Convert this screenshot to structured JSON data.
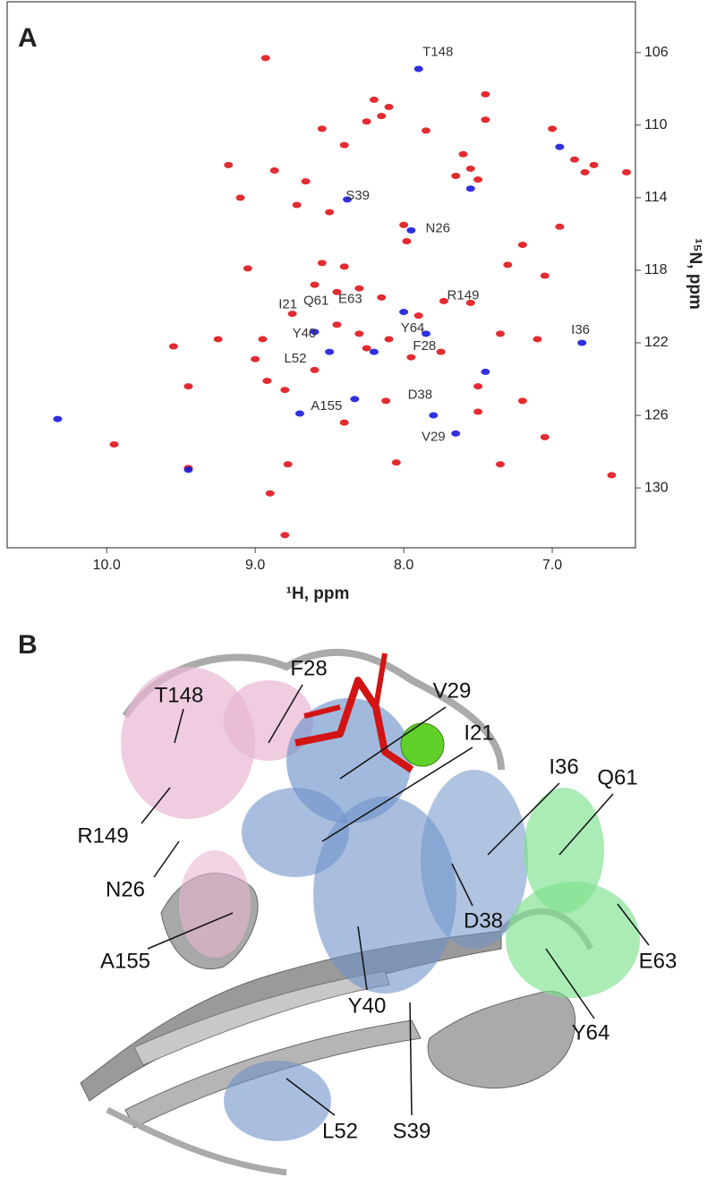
{
  "chart_data": {
    "type": "scatter",
    "panel_label": "A",
    "xlabel": "¹H, ppm",
    "ylabel": "¹⁵N, ppm",
    "xlim": [
      10.67,
      6.44
    ],
    "ylim": [
      103.2,
      133.3
    ],
    "xticks": [
      {
        "value": 10,
        "label": "10.0"
      },
      {
        "value": 9,
        "label": "9.0"
      },
      {
        "value": 8,
        "label": "8.0"
      },
      {
        "value": 7,
        "label": "7.0"
      }
    ],
    "yticks": [
      106,
      110,
      114,
      118,
      122,
      126,
      130
    ],
    "series": [
      {
        "color": "#e0141b",
        "x": [
          8.93,
          8.2,
          8.15,
          8.25,
          8.1,
          7.45,
          7.45,
          7.6,
          7.55,
          7.5,
          7.65,
          6.85,
          6.78,
          6.72,
          6.5,
          7.0,
          7.85,
          8.55,
          8.4,
          8.87,
          9.18,
          8.66,
          8.72,
          9.1,
          8.5,
          8.0,
          7.98,
          7.2,
          6.95,
          7.05,
          8.6,
          8.45,
          8.3,
          8.15,
          8.75,
          8.45,
          8.3,
          8.1,
          7.9,
          7.73,
          7.55,
          7.35,
          7.1,
          8.95,
          9.25,
          9.55,
          9.0,
          8.6,
          8.25,
          7.95,
          7.75,
          8.92,
          9.45,
          8.8,
          7.5,
          8.12,
          8.4,
          7.5,
          7.2,
          9.95,
          8.78,
          8.9,
          8.8,
          6.6,
          9.45,
          8.05,
          7.35,
          7.05,
          8.4,
          7.3,
          9.05,
          8.55
        ],
        "y": [
          106.3,
          108.6,
          109.5,
          109.8,
          109,
          108.3,
          109.7,
          111.6,
          112.4,
          113,
          112.8,
          111.9,
          112.6,
          112.2,
          112.6,
          110.2,
          110.3,
          110.2,
          111.1,
          112.5,
          112.2,
          113.1,
          114.4,
          114,
          114.8,
          115.5,
          116.4,
          116.6,
          115.6,
          118.3,
          118.8,
          119.2,
          119,
          119.5,
          120.4,
          121,
          121.5,
          121.8,
          120.5,
          119.7,
          119.8,
          121.5,
          121.8,
          121.8,
          121.8,
          122.2,
          122.9,
          123.5,
          122.3,
          122.8,
          122.5,
          124.1,
          124.4,
          124.6,
          124.4,
          125.2,
          126.4,
          125.8,
          125.2,
          127.6,
          128.7,
          130.3,
          132.6,
          129.3,
          128.9,
          128.6,
          128.7,
          127.2,
          117.8,
          117.7,
          117.9,
          117.6
        ]
      },
      {
        "color": "#1a1adc",
        "x": [
          7.9,
          8.38,
          7.95,
          6.95,
          7.55,
          8.0,
          7.85,
          8.2,
          8.5,
          7.8,
          7.65,
          6.8,
          9.45,
          8.7,
          8.33,
          10.33,
          8.6,
          7.45
        ],
        "y": [
          106.9,
          114.1,
          115.8,
          111.2,
          113.5,
          120.3,
          121.5,
          122.5,
          122.5,
          126,
          127,
          122,
          129,
          125.9,
          125.1,
          126.2,
          121.4,
          123.6
        ]
      }
    ],
    "annotations": [
      {
        "text": "T148",
        "x": 7.77,
        "y": 106.0
      },
      {
        "text": "S39",
        "x": 8.31,
        "y": 113.9
      },
      {
        "text": "N26",
        "x": 7.77,
        "y": 115.7
      },
      {
        "text": "R149",
        "x": 7.6,
        "y": 119.4
      },
      {
        "text": "I21",
        "x": 8.78,
        "y": 119.9
      },
      {
        "text": "Q61",
        "x": 8.59,
        "y": 119.7
      },
      {
        "text": "E63",
        "x": 8.36,
        "y": 119.6
      },
      {
        "text": "I36",
        "x": 6.81,
        "y": 121.3
      },
      {
        "text": "Y40",
        "x": 8.67,
        "y": 121.5
      },
      {
        "text": "Y64",
        "x": 7.94,
        "y": 121.2
      },
      {
        "text": "L52",
        "x": 8.73,
        "y": 122.9
      },
      {
        "text": "F28",
        "x": 7.86,
        "y": 122.2
      },
      {
        "text": "D38",
        "x": 7.89,
        "y": 124.9
      },
      {
        "text": "A155",
        "x": 8.52,
        "y": 125.5
      },
      {
        "text": "V29",
        "x": 7.8,
        "y": 127.2
      }
    ]
  },
  "panel_b": {
    "label": "B",
    "residue_labels": [
      "T148",
      "F28",
      "V29",
      "I21",
      "I36",
      "Q61",
      "R149",
      "N26",
      "A155",
      "D38",
      "E63",
      "Y40",
      "Y64",
      "L52",
      "S39"
    ]
  }
}
